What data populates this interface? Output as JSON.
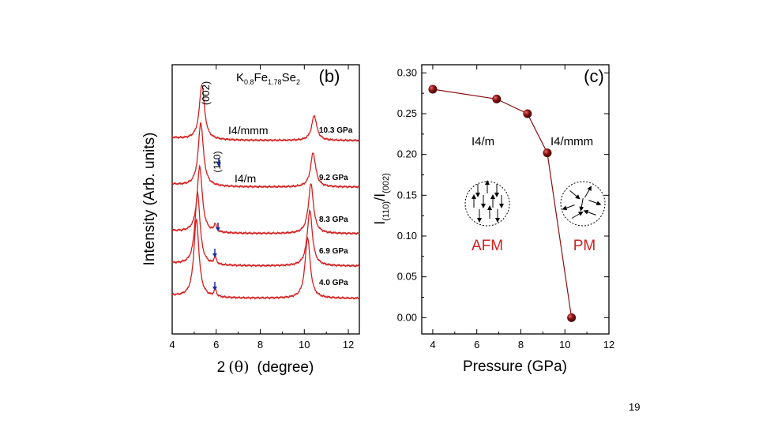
{
  "page_number": "19",
  "colors": {
    "curve": "#d42020",
    "marker": "#8b1010",
    "arrow_down": "#1a2a9a",
    "region_text": "#d42020",
    "axis": "#000000"
  },
  "chart_data": [
    {
      "type": "line",
      "panel_label": "(b)",
      "compound": {
        "base": "K",
        "s1": "0.8",
        "mid1": "Fe",
        "s2": "1.78",
        "mid2": "Se",
        "s3": "2"
      },
      "xlabel": "2(θ)  (degree)",
      "xlabel_parts": {
        "a": "2",
        "b": "(θ)",
        "c": "(degree)"
      },
      "ylabel": "Intensity (Arb. units)",
      "xlim": [
        4,
        12.5
      ],
      "xticks": [
        "4",
        "6",
        "8",
        "10",
        "12"
      ],
      "peak_labels": [
        "(002)",
        "(110)"
      ],
      "phase_labels": [
        "I4/mmm",
        "I4/m"
      ],
      "series": [
        {
          "name": "10.3 GPa",
          "peaks": [
            {
              "x": 5.35,
              "h": 1.0
            },
            {
              "x": 10.45,
              "h": 0.45
            }
          ],
          "ms": false
        },
        {
          "name": "9.2 GPa",
          "peaks": [
            {
              "x": 5.3,
              "h": 1.15
            },
            {
              "x": 10.4,
              "h": 0.62
            }
          ],
          "ms": false
        },
        {
          "name": "8.3 GPa",
          "peaks": [
            {
              "x": 5.25,
              "h": 1.2
            },
            {
              "x": 10.3,
              "h": 0.9
            }
          ],
          "ms": true
        },
        {
          "name": "6.9 GPa",
          "peaks": [
            {
              "x": 5.15,
              "h": 1.3
            },
            {
              "x": 10.25,
              "h": 1.0
            }
          ],
          "ms": true
        },
        {
          "name": "4.0 GPa",
          "peaks": [
            {
              "x": 5.1,
              "h": 1.4
            },
            {
              "x": 10.15,
              "h": 1.1
            }
          ],
          "ms": true
        }
      ]
    },
    {
      "type": "scatter",
      "panel_label": "(c)",
      "xlabel": "Pressure (GPa)",
      "ylabel_parts": {
        "i1": "I",
        "s1": "(110)",
        "slash": "/I",
        "s2": "(002)"
      },
      "xlim": [
        3.5,
        12
      ],
      "ylim": [
        -0.02,
        0.31
      ],
      "xticks": [
        "4",
        "6",
        "8",
        "10",
        "12"
      ],
      "yticks": [
        "0.00",
        "0.05",
        "0.10",
        "0.15",
        "0.20",
        "0.25",
        "0.30"
      ],
      "x": [
        4.0,
        6.9,
        8.3,
        9.2,
        10.3
      ],
      "y": [
        0.28,
        0.268,
        0.25,
        0.202,
        0.0
      ],
      "phase_labels": [
        "I4/m",
        "I4/mmm"
      ],
      "region_labels": [
        "AFM",
        "PM"
      ]
    }
  ]
}
